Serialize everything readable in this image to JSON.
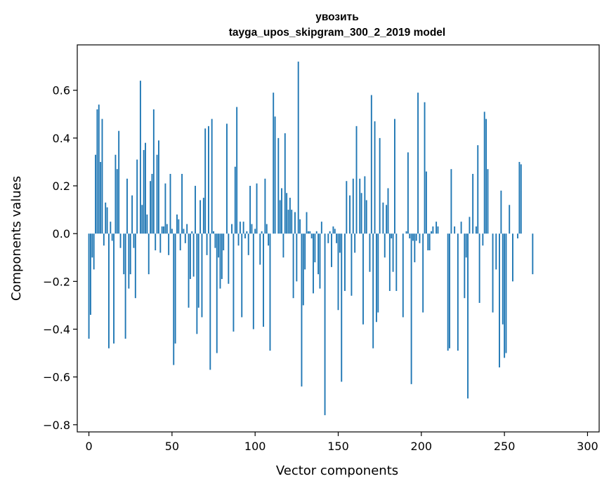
{
  "chart_data": {
    "type": "bar",
    "title": "увозить",
    "subtitle": "tayga_upos_skipgram_300_2_2019 model",
    "xlabel": "Vector components",
    "ylabel": "Components values",
    "xlim": [
      -7,
      307
    ],
    "ylim": [
      -0.83,
      0.79
    ],
    "x_ticks": [
      0,
      50,
      100,
      150,
      200,
      250,
      300
    ],
    "x_tick_labels": [
      "0",
      "50",
      "100",
      "150",
      "200",
      "250",
      "300"
    ],
    "y_ticks": [
      -0.8,
      -0.6,
      -0.4,
      -0.2,
      0.0,
      0.2,
      0.4,
      0.6
    ],
    "y_tick_labels": [
      "−0.8",
      "−0.6",
      "−0.4",
      "−0.2",
      "0.0",
      "0.2",
      "0.4",
      "0.6"
    ],
    "bar_color": "#1f77b4",
    "grid": false,
    "legend": "none",
    "values": [
      -0.44,
      -0.34,
      -0.1,
      -0.15,
      0.33,
      0.52,
      0.54,
      0.3,
      0.48,
      -0.05,
      0.13,
      0.11,
      -0.48,
      0.05,
      -0.03,
      -0.46,
      0.33,
      0.27,
      0.43,
      -0.06,
      0.0,
      -0.17,
      -0.44,
      0.23,
      -0.23,
      -0.17,
      0.16,
      -0.06,
      -0.27,
      0.31,
      0.0,
      0.64,
      0.12,
      0.35,
      0.38,
      0.08,
      -0.17,
      0.22,
      0.25,
      0.52,
      -0.07,
      0.33,
      0.39,
      -0.08,
      0.03,
      0.03,
      0.21,
      0.04,
      -0.09,
      0.25,
      0.02,
      -0.55,
      -0.46,
      0.08,
      0.06,
      -0.07,
      0.25,
      0.02,
      -0.04,
      0.04,
      -0.31,
      -0.19,
      0.01,
      -0.18,
      0.2,
      -0.42,
      -0.31,
      0.14,
      -0.35,
      0.15,
      0.44,
      -0.09,
      0.45,
      -0.57,
      0.48,
      0.01,
      -0.06,
      -0.5,
      -0.1,
      -0.23,
      -0.19,
      -0.07,
      0.0,
      0.46,
      -0.21,
      0.0,
      0.04,
      -0.41,
      0.28,
      0.53,
      -0.05,
      0.05,
      -0.35,
      0.05,
      -0.02,
      0.01,
      -0.09,
      0.2,
      0.04,
      -0.4,
      0.02,
      0.21,
      0.0,
      -0.13,
      0.01,
      -0.39,
      0.23,
      0.04,
      -0.05,
      -0.49,
      0.0,
      0.59,
      0.49,
      0.0,
      0.4,
      0.14,
      0.19,
      -0.1,
      0.42,
      0.17,
      0.1,
      0.15,
      0.1,
      -0.27,
      0.09,
      -0.2,
      0.72,
      0.06,
      -0.64,
      -0.3,
      -0.15,
      0.09,
      0.01,
      0.01,
      -0.02,
      -0.25,
      -0.12,
      0.01,
      -0.17,
      -0.23,
      0.05,
      0.0,
      -0.76,
      0.0,
      -0.04,
      0.01,
      -0.14,
      0.03,
      0.02,
      -0.04,
      -0.32,
      -0.08,
      -0.62,
      0.0,
      -0.24,
      0.22,
      0.0,
      0.16,
      -0.26,
      0.23,
      -0.08,
      0.45,
      0.0,
      0.23,
      0.17,
      -0.38,
      0.24,
      0.14,
      0.0,
      -0.16,
      0.58,
      -0.48,
      0.47,
      -0.37,
      -0.33,
      0.4,
      0.0,
      0.13,
      -0.1,
      0.12,
      0.19,
      -0.24,
      -0.02,
      -0.16,
      0.48,
      -0.24,
      0.0,
      0.0,
      0.0,
      -0.35,
      0.0,
      0.01,
      0.34,
      -0.02,
      -0.63,
      -0.03,
      -0.12,
      -0.03,
      0.59,
      -0.04,
      0.0,
      -0.33,
      0.55,
      0.26,
      -0.07,
      -0.07,
      0.01,
      0.03,
      0.0,
      0.05,
      0.03,
      0.0,
      0.0,
      0.0,
      0.0,
      0.0,
      -0.49,
      -0.48,
      0.27,
      0.0,
      0.03,
      0.0,
      -0.49,
      0.0,
      0.05,
      0.0,
      -0.27,
      -0.1,
      -0.69,
      0.07,
      0.0,
      0.25,
      0.0,
      0.03,
      0.37,
      -0.29,
      0.0,
      -0.05,
      0.51,
      0.48,
      0.27,
      0.0,
      0.0,
      -0.33,
      0.0,
      -0.15,
      0.0,
      -0.56,
      0.18,
      -0.38,
      -0.52,
      -0.5,
      0.0,
      0.12,
      0.0,
      -0.2,
      0.0,
      0.0,
      -0.02,
      0.3,
      0.29,
      0.0,
      0.0,
      0.0,
      0.0,
      0.0,
      0.0,
      -0.17,
      0.0,
      0.0,
      0.0,
      0.0,
      0.0,
      0.0,
      0.0,
      0.0,
      0.0,
      0.0,
      0.0,
      0.0,
      0.0,
      0.0,
      0.0,
      0.0,
      0.0,
      0.0,
      0.0,
      0.0,
      0.0,
      0.0,
      0.0,
      0.0,
      0.0,
      0.0,
      0.0,
      0.0,
      0.0,
      0.0
    ]
  }
}
